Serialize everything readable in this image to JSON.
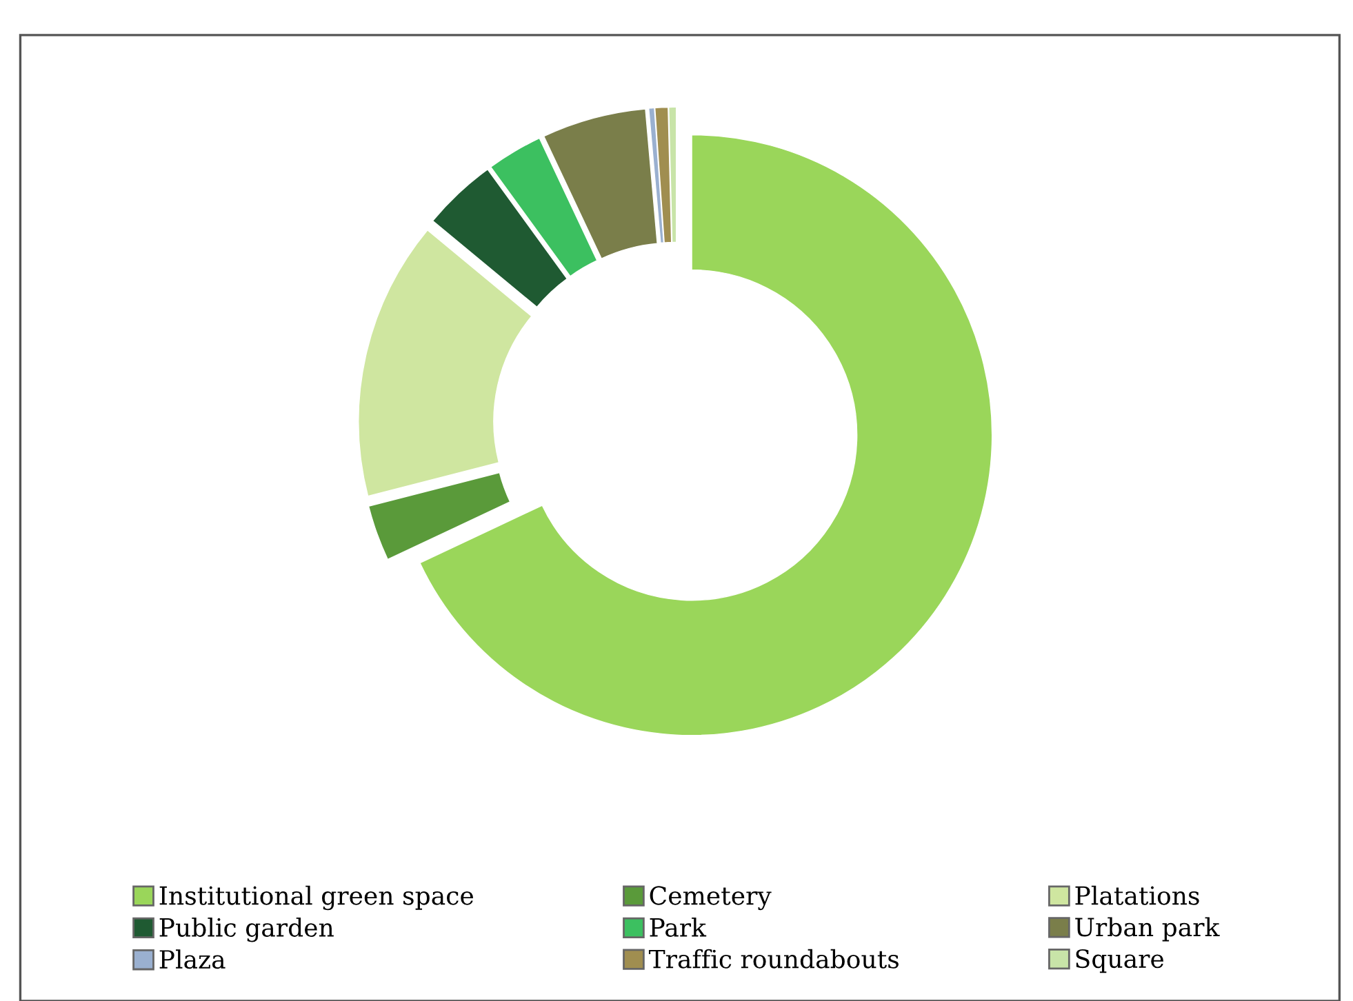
{
  "chart_data": {
    "type": "donut",
    "categories": [
      "Institutional green space",
      "Cemetery",
      "Platations",
      "Public garden",
      "Park",
      "Urban park",
      "Plaza",
      "Traffic roundabouts",
      "Square"
    ],
    "values": [
      68,
      3,
      15,
      4,
      3,
      5.6,
      0.3,
      0.7,
      0.4
    ],
    "colors": [
      "#9ad65a",
      "#5a9a3a",
      "#cfe6a0",
      "#1f5a32",
      "#3cc060",
      "#7a7e4a",
      "#9ab0d0",
      "#a08e50",
      "#c8e4a8"
    ],
    "legend": "bottom"
  }
}
